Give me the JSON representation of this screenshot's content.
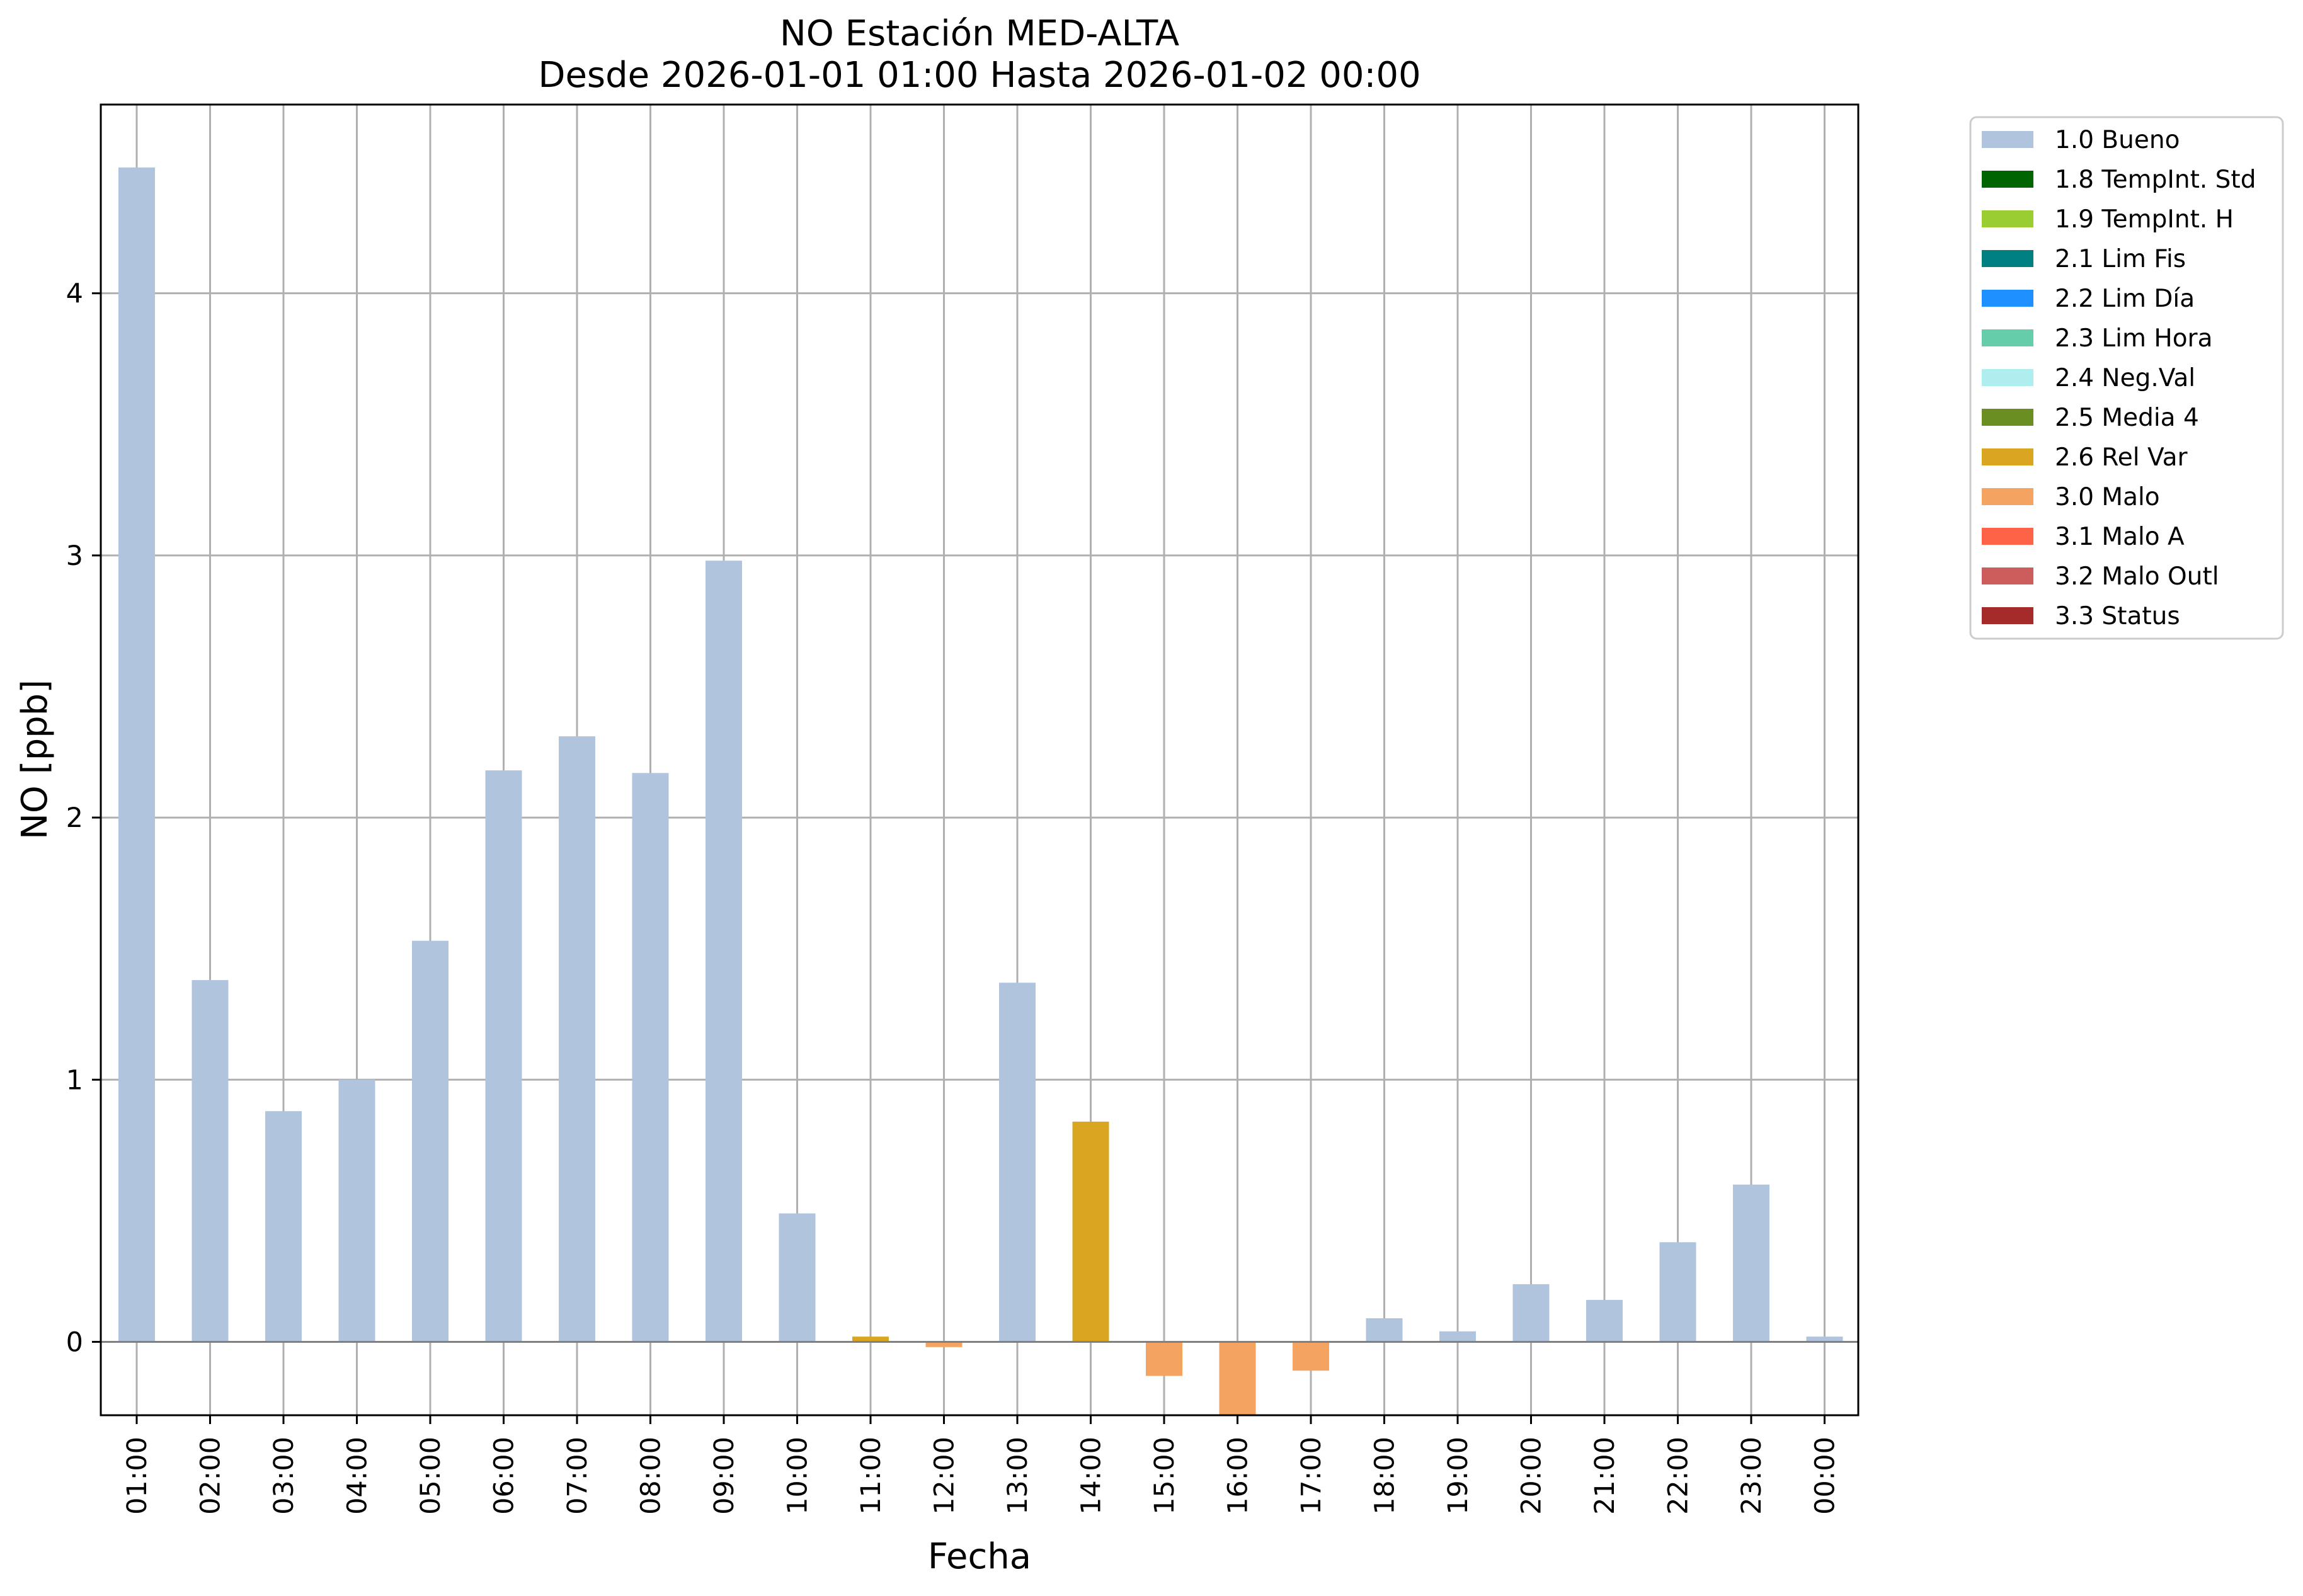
{
  "chart_data": {
    "type": "bar",
    "title": "NO Estación MED-ALTA",
    "subtitle": "Desde 2026-01-01 01:00 Hasta 2026-01-02 00:00",
    "xlabel": "Fecha",
    "ylabel": "NO [ppb]",
    "ylim": [
      -0.28,
      4.72
    ],
    "yticks": [
      0,
      1,
      2,
      3,
      4
    ],
    "grid": true,
    "legend_position": "outside-right-top",
    "categories": [
      "01:00",
      "02:00",
      "03:00",
      "04:00",
      "05:00",
      "06:00",
      "07:00",
      "08:00",
      "09:00",
      "10:00",
      "11:00",
      "12:00",
      "13:00",
      "14:00",
      "15:00",
      "16:00",
      "17:00",
      "18:00",
      "19:00",
      "20:00",
      "21:00",
      "22:00",
      "23:00",
      "00:00"
    ],
    "values": [
      4.48,
      1.38,
      0.88,
      1.0,
      1.53,
      2.18,
      2.31,
      2.17,
      2.98,
      0.49,
      0.02,
      -0.02,
      1.37,
      0.84,
      -0.13,
      -0.28,
      -0.11,
      0.09,
      0.04,
      0.22,
      0.16,
      0.38,
      0.6,
      0.02
    ],
    "flags": [
      "1.0 Bueno",
      "1.0 Bueno",
      "1.0 Bueno",
      "1.0 Bueno",
      "1.0 Bueno",
      "1.0 Bueno",
      "1.0 Bueno",
      "1.0 Bueno",
      "1.0 Bueno",
      "1.0 Bueno",
      "2.6 Rel Var",
      "3.0 Malo",
      "1.0 Bueno",
      "2.6 Rel Var",
      "3.0 Malo",
      "3.0 Malo",
      "3.0 Malo",
      "1.0 Bueno",
      "1.0 Bueno",
      "1.0 Bueno",
      "1.0 Bueno",
      "1.0 Bueno",
      "1.0 Bueno",
      "1.0 Bueno"
    ],
    "legend": [
      {
        "label": "1.0 Bueno",
        "color": "#b0c4de"
      },
      {
        "label": "1.8 TempInt. Std",
        "color": "#006400"
      },
      {
        "label": "1.9 TempInt. H",
        "color": "#9acd32"
      },
      {
        "label": "2.1 Lim Fis",
        "color": "#008080"
      },
      {
        "label": "2.2 Lim Día",
        "color": "#1e90ff"
      },
      {
        "label": "2.3 Lim Hora",
        "color": "#66cdaa"
      },
      {
        "label": "2.4 Neg.Val",
        "color": "#afeeee"
      },
      {
        "label": "2.5 Media 4",
        "color": "#6b8e23"
      },
      {
        "label": "2.6 Rel Var",
        "color": "#daa520"
      },
      {
        "label": "3.0 Malo",
        "color": "#f4a460"
      },
      {
        "label": "3.1 Malo A",
        "color": "#ff6347"
      },
      {
        "label": "3.2 Malo Outl",
        "color": "#cd5c5c"
      },
      {
        "label": "3.3 Status",
        "color": "#a52a2a"
      }
    ]
  }
}
